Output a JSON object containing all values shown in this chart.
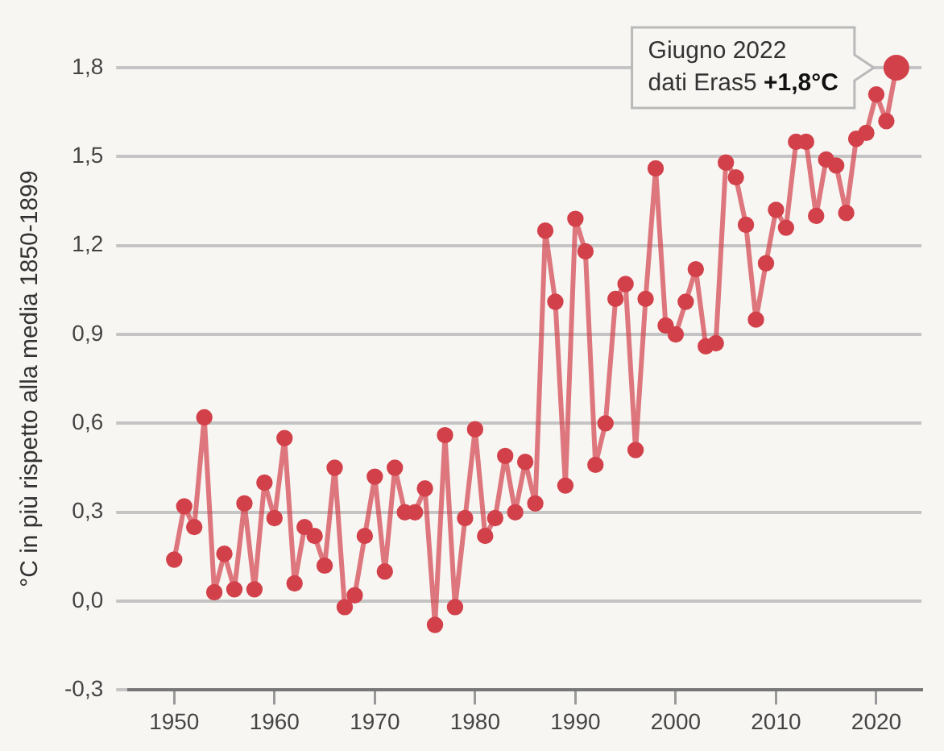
{
  "chart_data": {
    "type": "line",
    "ylabel": "°C in più rispetto alla media 1850-1899",
    "x": [
      1950,
      1951,
      1952,
      1953,
      1954,
      1955,
      1956,
      1957,
      1958,
      1959,
      1960,
      1961,
      1962,
      1963,
      1964,
      1965,
      1966,
      1967,
      1968,
      1969,
      1970,
      1971,
      1972,
      1973,
      1974,
      1975,
      1976,
      1977,
      1978,
      1979,
      1980,
      1981,
      1982,
      1983,
      1984,
      1985,
      1986,
      1987,
      1988,
      1989,
      1990,
      1991,
      1992,
      1993,
      1994,
      1995,
      1996,
      1997,
      1998,
      1999,
      2000,
      2001,
      2002,
      2003,
      2004,
      2005,
      2006,
      2007,
      2008,
      2009,
      2010,
      2011,
      2012,
      2013,
      2014,
      2015,
      2016,
      2017,
      2018,
      2019,
      2020,
      2021,
      2022
    ],
    "series": [
      {
        "color": "#d2404a",
        "values": [
          0.14,
          0.32,
          0.25,
          0.62,
          0.03,
          0.16,
          0.04,
          0.33,
          0.04,
          0.4,
          0.28,
          0.55,
          0.06,
          0.25,
          0.22,
          0.12,
          0.45,
          -0.02,
          0.02,
          0.22,
          0.42,
          0.1,
          0.45,
          0.3,
          0.3,
          0.38,
          -0.08,
          0.56,
          -0.02,
          0.28,
          0.58,
          0.22,
          0.28,
          0.49,
          0.3,
          0.47,
          0.33,
          1.25,
          1.01,
          0.39,
          1.29,
          1.18,
          0.46,
          0.6,
          1.02,
          1.07,
          0.51,
          1.02,
          1.46,
          0.93,
          0.9,
          1.01,
          1.12,
          0.86,
          0.87,
          1.48,
          1.43,
          1.27,
          0.95,
          1.14,
          1.32,
          1.26,
          1.55,
          1.55,
          1.3,
          1.49,
          1.47,
          1.31,
          1.56,
          1.58,
          1.71,
          1.62,
          1.8
        ]
      }
    ],
    "xlim": [
      1945.5,
      2024.5
    ],
    "xticks": [
      1950,
      1960,
      1970,
      1980,
      1990,
      2000,
      2010,
      2020
    ],
    "ylim": [
      -0.3,
      1.8
    ],
    "yticks": [
      {
        "value": -0.3,
        "label": "-0,3"
      },
      {
        "value": 0,
        "label": "0,0"
      },
      {
        "value": 0.3,
        "label": "0,3"
      },
      {
        "value": 0.6,
        "label": "0,6"
      },
      {
        "value": 0.9,
        "label": "0,9"
      },
      {
        "value": 1.2,
        "label": "1,2"
      },
      {
        "value": 1.5,
        "label": "1,5"
      },
      {
        "value": 1.8,
        "label": "1,8"
      }
    ],
    "grid": "y",
    "legend": false,
    "marker": "circle",
    "line_style": "solid",
    "annotations": [
      {
        "text": "Giugno 2022\ndati Eras5 +1,8°C",
        "x": 2022,
        "y": 1.8
      }
    ]
  }
}
